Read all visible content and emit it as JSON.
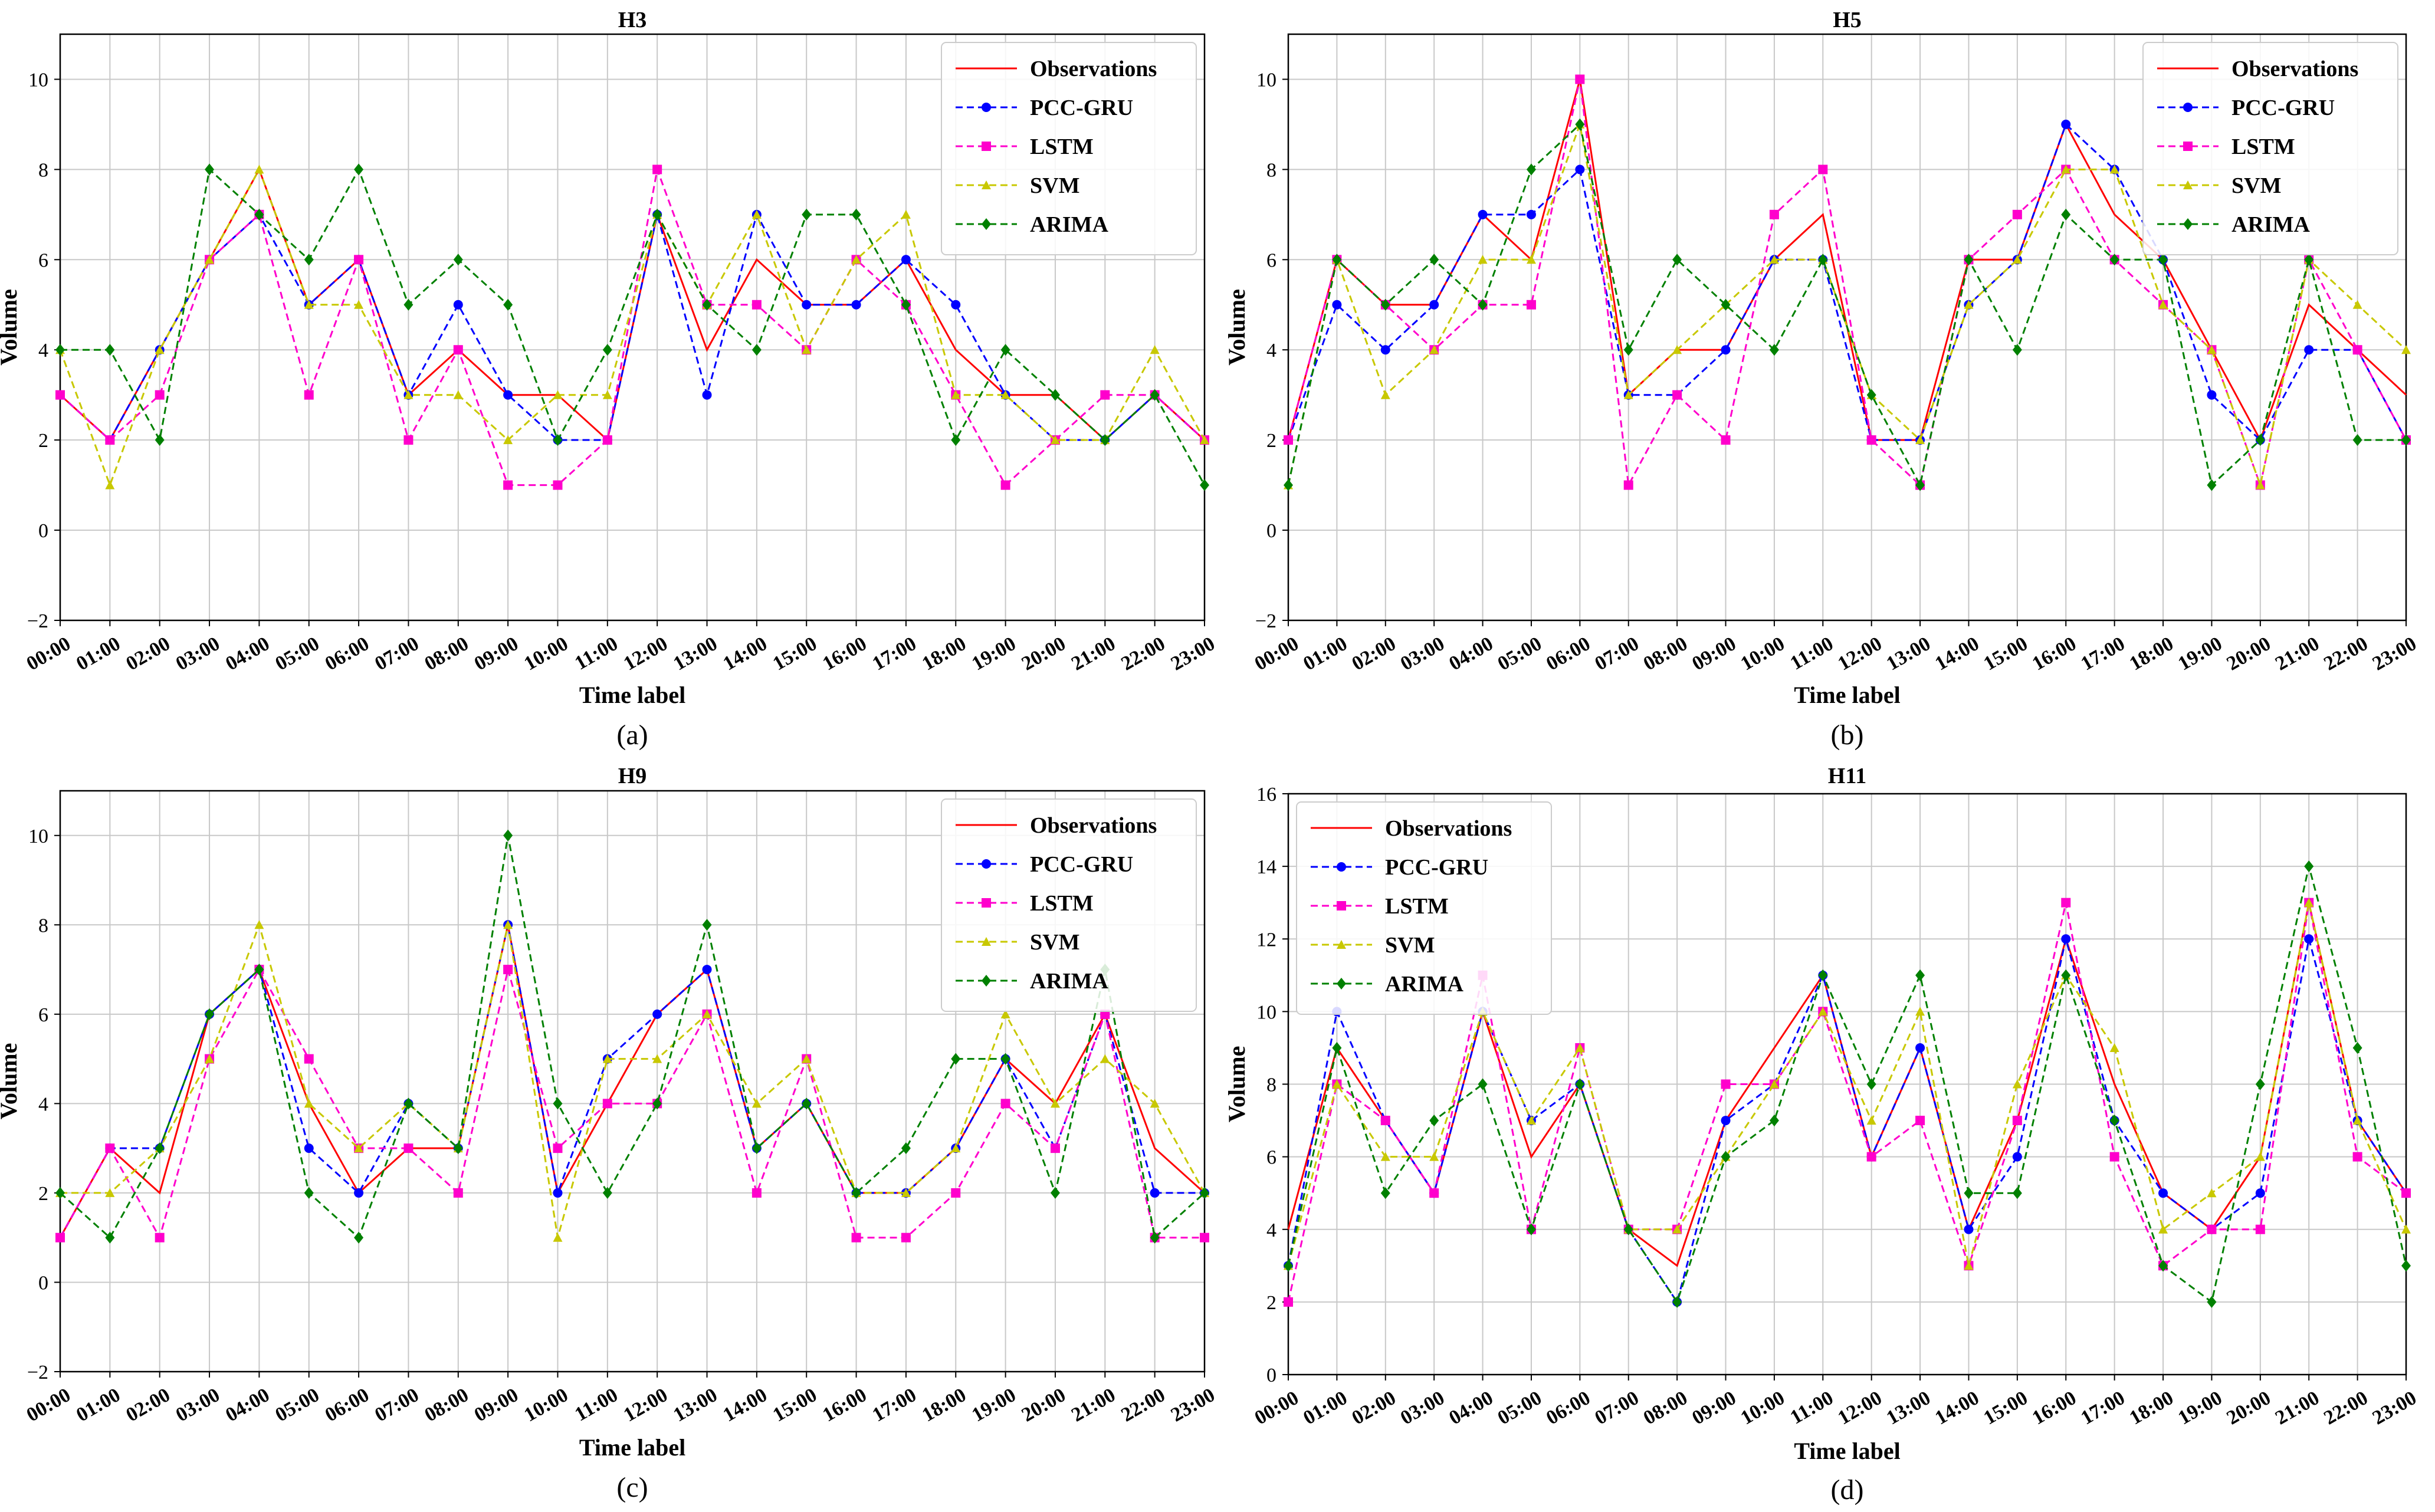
{
  "figure": {
    "panels": [
      "a",
      "b",
      "c",
      "d"
    ]
  },
  "legend_labels": [
    "Observations",
    "PCC-GRU",
    "LSTM",
    "SVM",
    "ARIMA"
  ],
  "series_colors": {
    "Observations": "#ff0000",
    "PCC-GRU": "#0000ff",
    "LSTM": "#ff00cc",
    "SVM": "#c8c800",
    "ARIMA": "#008000"
  },
  "chart_data": [
    {
      "type": "line",
      "panel_label": "(a)",
      "title": "H3",
      "xlabel": "Time label",
      "ylabel": "Volume",
      "ylim": [
        -2,
        11
      ],
      "yticks": [
        -2,
        0,
        2,
        4,
        6,
        8,
        10
      ],
      "grid": true,
      "legend_position": "top-right",
      "categories": [
        "00:00",
        "01:00",
        "02:00",
        "03:00",
        "04:00",
        "05:00",
        "06:00",
        "07:00",
        "08:00",
        "09:00",
        "10:00",
        "11:00",
        "12:00",
        "13:00",
        "14:00",
        "15:00",
        "16:00",
        "17:00",
        "18:00",
        "19:00",
        "20:00",
        "21:00",
        "22:00",
        "23:00"
      ],
      "series": [
        {
          "name": "Observations",
          "marker": "none",
          "style": "solid",
          "values": [
            3,
            2,
            4,
            6,
            8,
            5,
            6,
            3,
            4,
            3,
            3,
            2,
            7,
            4,
            6,
            5,
            5,
            6,
            4,
            3,
            3,
            2,
            3,
            2
          ]
        },
        {
          "name": "PCC-GRU",
          "marker": "circle",
          "style": "dashed",
          "values": [
            3,
            2,
            4,
            6,
            7,
            5,
            6,
            3,
            5,
            3,
            2,
            2,
            7,
            3,
            7,
            5,
            5,
            6,
            5,
            3,
            2,
            2,
            3,
            2
          ]
        },
        {
          "name": "LSTM",
          "marker": "square",
          "style": "dashed",
          "values": [
            3,
            2,
            3,
            6,
            7,
            3,
            6,
            2,
            4,
            1,
            1,
            2,
            8,
            5,
            5,
            4,
            6,
            5,
            3,
            1,
            2,
            3,
            3,
            2
          ]
        },
        {
          "name": "SVM",
          "marker": "triangle",
          "style": "dashed",
          "values": [
            4,
            1,
            4,
            6,
            8,
            5,
            5,
            3,
            3,
            2,
            3,
            3,
            7,
            5,
            7,
            4,
            6,
            7,
            3,
            3,
            2,
            2,
            4,
            2
          ]
        },
        {
          "name": "ARIMA",
          "marker": "diamond",
          "style": "dashed",
          "values": [
            4,
            4,
            2,
            8,
            7,
            6,
            8,
            5,
            6,
            5,
            2,
            4,
            7,
            5,
            4,
            7,
            7,
            5,
            2,
            4,
            3,
            2,
            3,
            1
          ]
        }
      ]
    },
    {
      "type": "line",
      "panel_label": "(b)",
      "title": "H5",
      "xlabel": "Time label",
      "ylabel": "Volume",
      "ylim": [
        -2,
        11
      ],
      "yticks": [
        -2,
        0,
        2,
        4,
        6,
        8,
        10
      ],
      "grid": true,
      "legend_position": "top-right",
      "categories": [
        "00:00",
        "01:00",
        "02:00",
        "03:00",
        "04:00",
        "05:00",
        "06:00",
        "07:00",
        "08:00",
        "09:00",
        "10:00",
        "11:00",
        "12:00",
        "13:00",
        "14:00",
        "15:00",
        "16:00",
        "17:00",
        "18:00",
        "19:00",
        "20:00",
        "21:00",
        "22:00",
        "23:00"
      ],
      "series": [
        {
          "name": "Observations",
          "marker": "none",
          "style": "solid",
          "values": [
            2,
            6,
            5,
            5,
            7,
            6,
            10,
            3,
            4,
            4,
            6,
            7,
            2,
            2,
            6,
            6,
            9,
            7,
            6,
            4,
            2,
            5,
            4,
            3
          ]
        },
        {
          "name": "PCC-GRU",
          "marker": "circle",
          "style": "dashed",
          "values": [
            2,
            5,
            4,
            5,
            7,
            7,
            8,
            3,
            3,
            4,
            6,
            6,
            2,
            2,
            5,
            6,
            9,
            8,
            6,
            3,
            2,
            4,
            4,
            2
          ]
        },
        {
          "name": "LSTM",
          "marker": "square",
          "style": "dashed",
          "values": [
            2,
            6,
            5,
            4,
            5,
            5,
            10,
            1,
            3,
            2,
            7,
            8,
            2,
            1,
            6,
            7,
            8,
            6,
            5,
            4,
            1,
            6,
            4,
            2
          ]
        },
        {
          "name": "SVM",
          "marker": "triangle",
          "style": "dashed",
          "values": [
            1,
            6,
            3,
            4,
            6,
            6,
            9,
            3,
            4,
            5,
            6,
            6,
            3,
            2,
            5,
            6,
            8,
            8,
            5,
            4,
            1,
            6,
            5,
            4
          ]
        },
        {
          "name": "ARIMA",
          "marker": "diamond",
          "style": "dashed",
          "values": [
            1,
            6,
            5,
            6,
            5,
            8,
            9,
            4,
            6,
            5,
            4,
            6,
            3,
            1,
            6,
            4,
            7,
            6,
            6,
            1,
            2,
            6,
            2,
            2
          ]
        }
      ]
    },
    {
      "type": "line",
      "panel_label": "(c)",
      "title": "H9",
      "xlabel": "Time label",
      "ylabel": "Volume",
      "ylim": [
        -2,
        11
      ],
      "yticks": [
        -2,
        0,
        2,
        4,
        6,
        8,
        10
      ],
      "grid": true,
      "legend_position": "top-right",
      "categories": [
        "00:00",
        "01:00",
        "02:00",
        "03:00",
        "04:00",
        "05:00",
        "06:00",
        "07:00",
        "08:00",
        "09:00",
        "10:00",
        "11:00",
        "12:00",
        "13:00",
        "14:00",
        "15:00",
        "16:00",
        "17:00",
        "18:00",
        "19:00",
        "20:00",
        "21:00",
        "22:00",
        "23:00"
      ],
      "series": [
        {
          "name": "Observations",
          "marker": "none",
          "style": "solid",
          "values": [
            1,
            3,
            2,
            6,
            7,
            4,
            2,
            3,
            3,
            8,
            2,
            4,
            6,
            7,
            3,
            4,
            2,
            2,
            3,
            5,
            4,
            6,
            3,
            2
          ]
        },
        {
          "name": "PCC-GRU",
          "marker": "circle",
          "style": "dashed",
          "values": [
            1,
            3,
            3,
            6,
            7,
            3,
            2,
            4,
            3,
            8,
            2,
            5,
            6,
            7,
            3,
            4,
            2,
            2,
            3,
            5,
            3,
            6,
            2,
            2
          ]
        },
        {
          "name": "LSTM",
          "marker": "square",
          "style": "dashed",
          "values": [
            1,
            3,
            1,
            5,
            7,
            5,
            3,
            3,
            2,
            7,
            3,
            4,
            4,
            6,
            2,
            5,
            1,
            1,
            2,
            4,
            3,
            6,
            1,
            1
          ]
        },
        {
          "name": "SVM",
          "marker": "triangle",
          "style": "dashed",
          "values": [
            2,
            2,
            3,
            5,
            8,
            4,
            3,
            4,
            3,
            8,
            1,
            5,
            5,
            6,
            4,
            5,
            2,
            2,
            3,
            6,
            4,
            5,
            4,
            2
          ]
        },
        {
          "name": "ARIMA",
          "marker": "diamond",
          "style": "dashed",
          "values": [
            2,
            1,
            3,
            6,
            7,
            2,
            1,
            4,
            3,
            10,
            4,
            2,
            4,
            8,
            3,
            4,
            2,
            3,
            5,
            5,
            2,
            7,
            1,
            2
          ]
        }
      ]
    },
    {
      "type": "line",
      "panel_label": "(d)",
      "title": "H11",
      "xlabel": "Time label",
      "ylabel": "Volume",
      "ylim": [
        0,
        16
      ],
      "yticks": [
        0,
        2,
        4,
        6,
        8,
        10,
        12,
        14,
        16
      ],
      "grid": true,
      "legend_position": "top-left",
      "categories": [
        "00:00",
        "01:00",
        "02:00",
        "03:00",
        "04:00",
        "05:00",
        "06:00",
        "07:00",
        "08:00",
        "09:00",
        "10:00",
        "11:00",
        "12:00",
        "13:00",
        "14:00",
        "15:00",
        "16:00",
        "17:00",
        "18:00",
        "19:00",
        "20:00",
        "21:00",
        "22:00",
        "23:00"
      ],
      "series": [
        {
          "name": "Observations",
          "marker": "none",
          "style": "solid",
          "values": [
            4,
            9,
            7,
            5,
            10,
            6,
            8,
            4,
            3,
            7,
            9,
            11,
            6,
            9,
            4,
            7,
            12,
            8,
            5,
            4,
            6,
            13,
            7,
            5
          ]
        },
        {
          "name": "PCC-GRU",
          "marker": "circle",
          "style": "dashed",
          "values": [
            3,
            10,
            7,
            5,
            10,
            7,
            8,
            4,
            2,
            7,
            8,
            11,
            6,
            9,
            4,
            6,
            12,
            7,
            5,
            4,
            5,
            12,
            7,
            5
          ]
        },
        {
          "name": "LSTM",
          "marker": "square",
          "style": "dashed",
          "values": [
            2,
            8,
            7,
            5,
            11,
            4,
            9,
            4,
            4,
            8,
            8,
            10,
            6,
            7,
            3,
            7,
            13,
            6,
            3,
            4,
            4,
            13,
            6,
            5
          ]
        },
        {
          "name": "SVM",
          "marker": "triangle",
          "style": "dashed",
          "values": [
            3,
            8,
            6,
            6,
            10,
            7,
            9,
            4,
            4,
            6,
            8,
            10,
            7,
            10,
            3,
            8,
            11,
            9,
            4,
            5,
            6,
            13,
            7,
            4
          ]
        },
        {
          "name": "ARIMA",
          "marker": "diamond",
          "style": "dashed",
          "values": [
            3,
            9,
            5,
            7,
            8,
            4,
            8,
            4,
            2,
            6,
            7,
            11,
            8,
            11,
            5,
            5,
            11,
            7,
            3,
            2,
            8,
            14,
            9,
            3
          ]
        }
      ]
    }
  ]
}
